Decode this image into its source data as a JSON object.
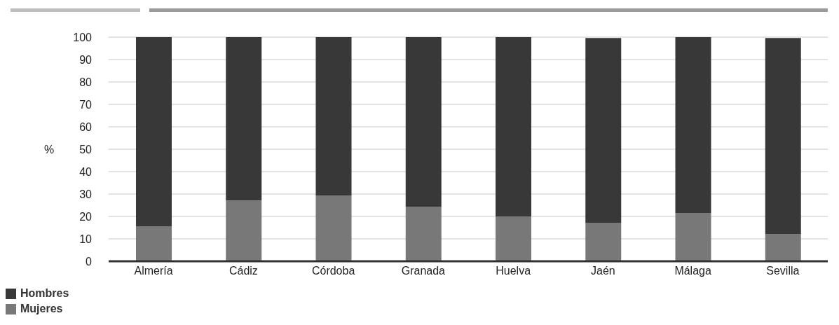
{
  "chart_data": {
    "type": "bar",
    "stacked": true,
    "ylabel": "%",
    "categories": [
      "Almería",
      "Cádiz",
      "Córdoba",
      "Granada",
      "Huelva",
      "Jaén",
      "Málaga",
      "Sevilla"
    ],
    "series": [
      {
        "name": "Mujeres",
        "color": "#787878",
        "values": [
          15.5,
          27.1,
          29.2,
          24.2,
          19.9,
          17.2,
          21.4,
          12.0
        ]
      },
      {
        "name": "Hombres",
        "color": "#383838",
        "values": [
          84.5,
          72.9,
          70.8,
          75.8,
          80.1,
          82.4,
          78.6,
          87.6
        ]
      }
    ],
    "ylim": [
      0,
      100
    ],
    "yticks": [
      0,
      10,
      20,
      30,
      40,
      50,
      60,
      70,
      80,
      90,
      100
    ],
    "grid": "y",
    "legend": "bottom left"
  }
}
